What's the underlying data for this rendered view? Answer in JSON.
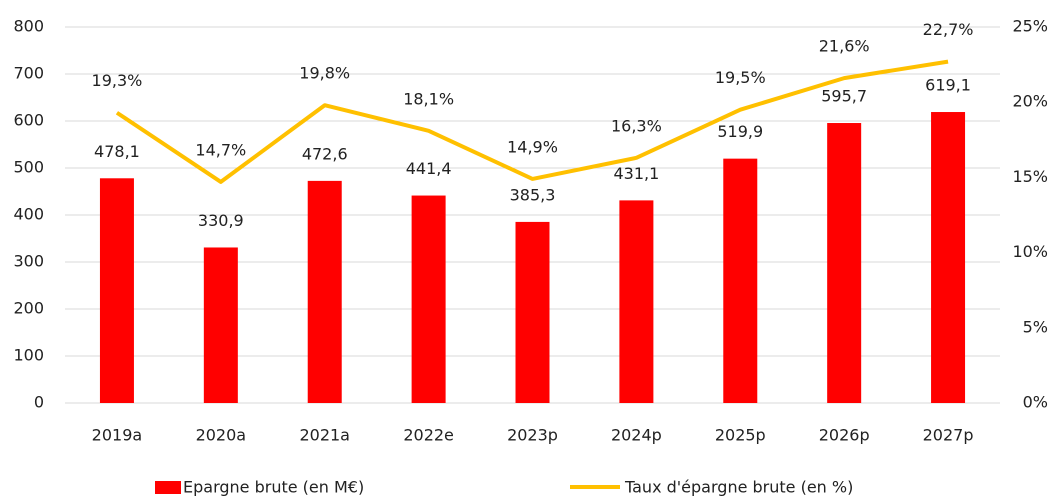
{
  "chart_data": {
    "type": "bar",
    "categories": [
      "2019a",
      "2020a",
      "2021a",
      "2022e",
      "2023p",
      "2024p",
      "2025p",
      "2026p",
      "2027p"
    ],
    "series": [
      {
        "name": "Epargne brute (en M€)",
        "type": "bar",
        "color": "#ff0000",
        "values": [
          478.1,
          330.9,
          472.6,
          441.4,
          385.3,
          431.1,
          519.9,
          595.7,
          619.1
        ],
        "value_labels": [
          "478,1",
          "330,9",
          "472,6",
          "441,4",
          "385,3",
          "431,1",
          "519,9",
          "595,7",
          "619,1"
        ]
      },
      {
        "name": "Taux d'épargne brute (en %)",
        "type": "line",
        "axis": "y2",
        "color": "#ffc000",
        "values": [
          19.3,
          14.7,
          19.8,
          18.1,
          14.9,
          16.3,
          19.5,
          21.6,
          22.7
        ],
        "value_labels": [
          "19,3%",
          "14,7%",
          "19,8%",
          "18,1%",
          "14,9%",
          "16,3%",
          "19,5%",
          "21,6%",
          "22,7%"
        ]
      }
    ],
    "ylim": [
      0,
      800
    ],
    "yticks": [
      0,
      100,
      200,
      300,
      400,
      500,
      600,
      700,
      800
    ],
    "y2lim": [
      0,
      25
    ],
    "y2ticks": [
      {
        "value": 0,
        "label": "0%"
      },
      {
        "value": 5,
        "label": "5%"
      },
      {
        "value": 10,
        "label": "10%"
      },
      {
        "value": 15,
        "label": "15%"
      },
      {
        "value": 20,
        "label": "20%"
      },
      {
        "value": 25,
        "label": "25%"
      }
    ],
    "grid": true,
    "legend": "bottom"
  }
}
